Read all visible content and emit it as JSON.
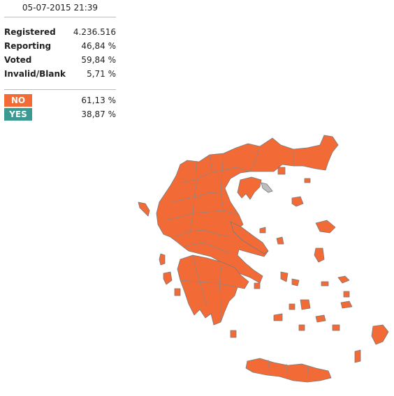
{
  "timestamp": "05-07-2015 21:39",
  "stats": [
    {
      "label": "Registered",
      "value": "4.236.516"
    },
    {
      "label": "Reporting",
      "value": "46,84 %"
    },
    {
      "label": "Voted",
      "value": "59,84 %"
    },
    {
      "label": "Invalid/Blank",
      "value": "5,71 %"
    }
  ],
  "results": [
    {
      "label": "NO",
      "value": "61,13 %",
      "color": "#f26a35"
    },
    {
      "label": "YES",
      "value": "38,87 %",
      "color": "#3a9a92"
    }
  ],
  "map_colors": {
    "no": "#f26a35",
    "no_data": "#bdbdbd"
  }
}
